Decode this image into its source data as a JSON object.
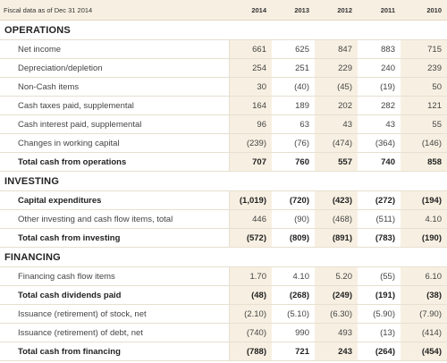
{
  "header": {
    "label": "Fiscal data as of Dec 31 2014",
    "years": [
      "2014",
      "2013",
      "2012",
      "2011",
      "2010"
    ]
  },
  "sections": {
    "operations": {
      "title": "OPERATIONS",
      "rows": [
        {
          "label": "Net income",
          "total": false,
          "values": [
            "661",
            "625",
            "847",
            "883",
            "715"
          ]
        },
        {
          "label": "Depreciation/depletion",
          "total": false,
          "values": [
            "254",
            "251",
            "229",
            "240",
            "239"
          ]
        },
        {
          "label": "Non-Cash items",
          "total": false,
          "values": [
            "30",
            "(40)",
            "(45)",
            "(19)",
            "50"
          ]
        },
        {
          "label": "Cash taxes paid, supplemental",
          "total": false,
          "values": [
            "164",
            "189",
            "202",
            "282",
            "121"
          ]
        },
        {
          "label": "Cash interest paid, supplemental",
          "total": false,
          "values": [
            "96",
            "63",
            "43",
            "43",
            "55"
          ]
        },
        {
          "label": "Changes in working capital",
          "total": false,
          "values": [
            "(239)",
            "(76)",
            "(474)",
            "(364)",
            "(146)"
          ]
        },
        {
          "label": "Total cash from operations",
          "total": true,
          "values": [
            "707",
            "760",
            "557",
            "740",
            "858"
          ]
        }
      ]
    },
    "investing": {
      "title": "INVESTING",
      "rows": [
        {
          "label": "Capital expenditures",
          "total": true,
          "values": [
            "(1,019)",
            "(720)",
            "(423)",
            "(272)",
            "(194)"
          ]
        },
        {
          "label": "Other investing and cash flow items, total",
          "total": false,
          "values": [
            "446",
            "(90)",
            "(468)",
            "(511)",
            "4.10"
          ]
        },
        {
          "label": "Total cash from investing",
          "total": true,
          "values": [
            "(572)",
            "(809)",
            "(891)",
            "(783)",
            "(190)"
          ]
        }
      ]
    },
    "financing": {
      "title": "FINANCING",
      "rows": [
        {
          "label": "Financing cash flow items",
          "total": false,
          "values": [
            "1.70",
            "4.10",
            "5.20",
            "(55)",
            "6.10"
          ]
        },
        {
          "label": "Total cash dividends paid",
          "total": true,
          "values": [
            "(48)",
            "(268)",
            "(249)",
            "(191)",
            "(38)"
          ]
        },
        {
          "label": "Issuance (retirement) of stock, net",
          "total": false,
          "values": [
            "(2.10)",
            "(5.10)",
            "(6.30)",
            "(5.90)",
            "(7.90)"
          ]
        },
        {
          "label": "Issuance (retirement) of debt, net",
          "total": false,
          "values": [
            "(740)",
            "990",
            "493",
            "(13)",
            "(414)"
          ]
        },
        {
          "label": "Total cash from financing",
          "total": true,
          "values": [
            "(788)",
            "721",
            "243",
            "(264)",
            "(454)"
          ]
        }
      ]
    }
  }
}
